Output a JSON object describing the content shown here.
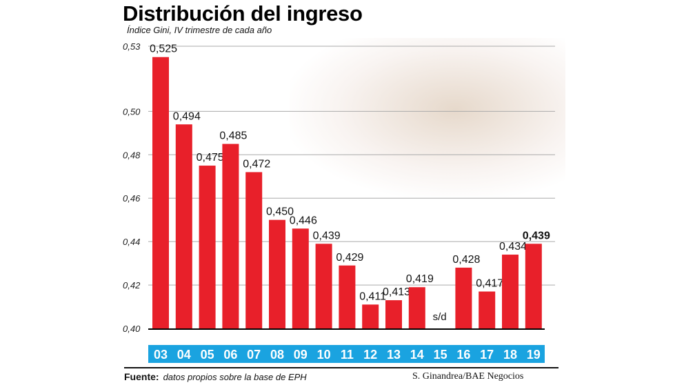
{
  "chart_data": {
    "type": "bar",
    "title": "Distribución del ingreso",
    "subtitle": "Índice Gini, IV trimestre de cada año",
    "categories": [
      "03",
      "04",
      "05",
      "06",
      "07",
      "08",
      "09",
      "10",
      "11",
      "12",
      "13",
      "14",
      "15",
      "16",
      "17",
      "18",
      "19"
    ],
    "values": [
      0.525,
      0.494,
      0.475,
      0.485,
      0.472,
      0.45,
      0.446,
      0.439,
      0.429,
      0.411,
      0.413,
      0.419,
      null,
      0.428,
      0.417,
      0.434,
      0.439
    ],
    "value_labels": [
      "0,525",
      "0,494",
      "0,475",
      "0,485",
      "0,472",
      "0,450",
      "0,446",
      "0,439",
      "0,429",
      "0,411",
      "0,413",
      "0,419",
      "s/d",
      "0,428",
      "0,417",
      "0,434",
      "0,439"
    ],
    "ylim": [
      0.4,
      0.53
    ],
    "yticks": [
      0.4,
      0.42,
      0.44,
      0.46,
      0.48,
      0.5,
      0.53
    ],
    "ytick_labels": [
      "0,40",
      "0,42",
      "0,44",
      "0,46",
      "0,48",
      "0,50",
      "0,53"
    ],
    "grid": true,
    "colors": {
      "bar": "#e8202a",
      "category_band": "#1aa3e0"
    }
  },
  "footer": {
    "source_label": "Fuente:",
    "source_text": "datos propios sobre la base de EPH",
    "credit": "S. Ginandrea/BAE Negocios"
  }
}
